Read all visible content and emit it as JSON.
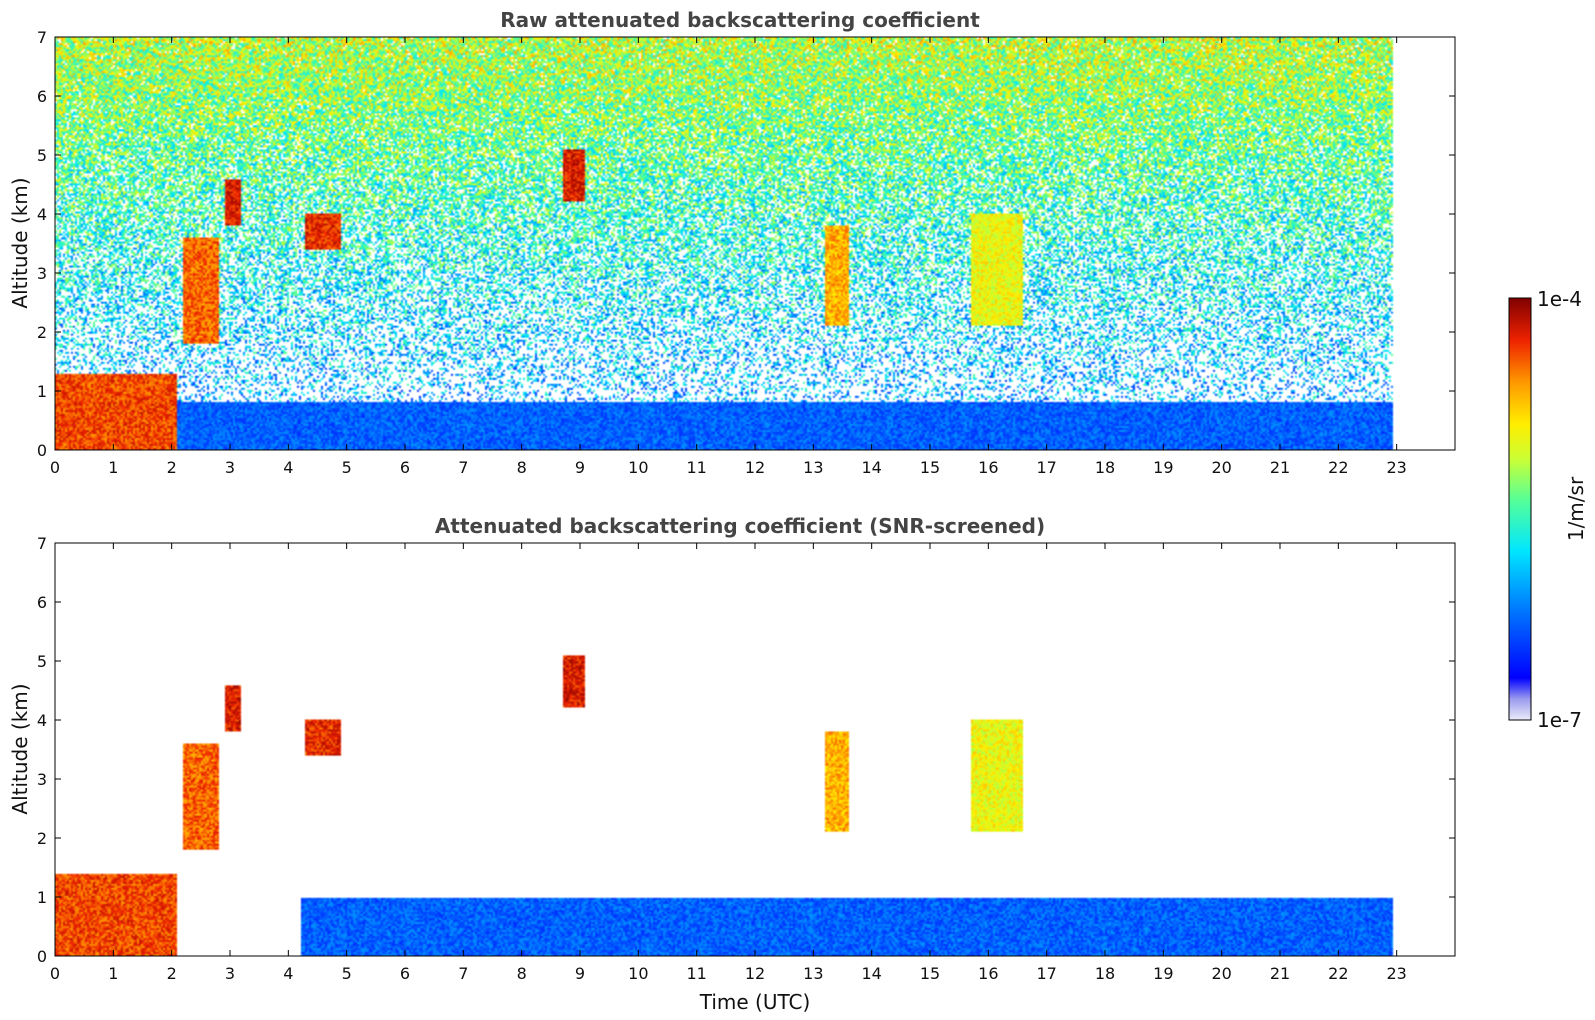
{
  "chart_data": [
    {
      "type": "heatmap",
      "title": "Raw attenuated backscattering coefficient",
      "xlabel": "",
      "ylabel": "Altitude (km)",
      "xlim": [
        0,
        24
      ],
      "ylim": [
        0,
        7
      ],
      "x_ticks": [
        "0",
        "1",
        "2",
        "3",
        "4",
        "5",
        "6",
        "7",
        "8",
        "9",
        "10",
        "11",
        "12",
        "13",
        "14",
        "15",
        "16",
        "17",
        "18",
        "19",
        "20",
        "21",
        "22",
        "23"
      ],
      "y_ticks": [
        "0",
        "1",
        "2",
        "3",
        "4",
        "5",
        "6",
        "7"
      ],
      "data_end_time": 22.95,
      "grid": false,
      "features": [
        {
          "t0": 0.0,
          "t1": 2.1,
          "z0": 0.0,
          "z1": 1.3,
          "level": 0.85
        },
        {
          "t0": 2.2,
          "t1": 2.8,
          "z0": 1.8,
          "z1": 3.6,
          "level": 0.82
        },
        {
          "t0": 2.9,
          "t1": 3.2,
          "z0": 3.8,
          "z1": 4.6,
          "level": 0.9
        },
        {
          "t0": 4.3,
          "t1": 4.9,
          "z0": 3.4,
          "z1": 4.0,
          "level": 0.88
        },
        {
          "t0": 8.7,
          "t1": 9.1,
          "z0": 4.2,
          "z1": 5.1,
          "level": 0.9
        },
        {
          "t0": 13.2,
          "t1": 13.6,
          "z0": 2.1,
          "z1": 3.8,
          "level": 0.75
        },
        {
          "t0": 15.7,
          "t1": 16.6,
          "z0": 2.1,
          "z1": 4.0,
          "level": 0.65
        },
        {
          "t0": 0.0,
          "t1": 22.95,
          "z0": 0.0,
          "z1": 0.8,
          "level": 0.2
        }
      ]
    },
    {
      "type": "heatmap",
      "title": "Attenuated backscattering coefficient (SNR-screened)",
      "xlabel": "Time (UTC)",
      "ylabel": "Altitude (km)",
      "xlim": [
        0,
        24
      ],
      "ylim": [
        0,
        7
      ],
      "x_ticks": [
        "0",
        "1",
        "2",
        "3",
        "4",
        "5",
        "6",
        "7",
        "8",
        "9",
        "10",
        "11",
        "12",
        "13",
        "14",
        "15",
        "16",
        "17",
        "18",
        "19",
        "20",
        "21",
        "22",
        "23"
      ],
      "y_ticks": [
        "0",
        "1",
        "2",
        "3",
        "4",
        "5",
        "6",
        "7"
      ],
      "data_end_time": 22.95,
      "grid": false,
      "features": [
        {
          "t0": 0.0,
          "t1": 2.1,
          "z0": 0.0,
          "z1": 1.4,
          "level": 0.85
        },
        {
          "t0": 2.2,
          "t1": 2.8,
          "z0": 1.8,
          "z1": 3.6,
          "level": 0.82
        },
        {
          "t0": 2.9,
          "t1": 3.2,
          "z0": 3.8,
          "z1": 4.6,
          "level": 0.9
        },
        {
          "t0": 4.3,
          "t1": 4.9,
          "z0": 3.4,
          "z1": 4.0,
          "level": 0.88
        },
        {
          "t0": 8.7,
          "t1": 9.1,
          "z0": 4.2,
          "z1": 5.1,
          "level": 0.9
        },
        {
          "t0": 13.2,
          "t1": 13.6,
          "z0": 2.1,
          "z1": 3.8,
          "level": 0.75
        },
        {
          "t0": 15.7,
          "t1": 16.6,
          "z0": 2.1,
          "z1": 4.0,
          "level": 0.65
        },
        {
          "t0": 4.2,
          "t1": 22.95,
          "z0": 0.0,
          "z1": 1.0,
          "level": 0.2
        }
      ]
    }
  ],
  "colorbar": {
    "label": "1/m/sr",
    "max_label": "1e-4",
    "min_label": "1e-7",
    "colors": [
      "#e6e6fa",
      "#9999ee",
      "#0000ff",
      "#0066ff",
      "#00ccff",
      "#00ffcc",
      "#66ff66",
      "#ccff33",
      "#ffff00",
      "#ffcc00",
      "#ff8800",
      "#ff3300",
      "#cc0000",
      "#800000"
    ]
  }
}
